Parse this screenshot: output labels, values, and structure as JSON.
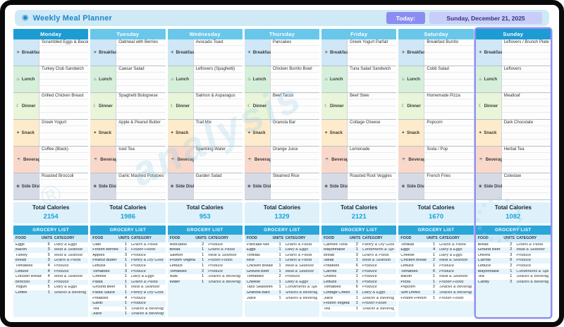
{
  "app": {
    "title": "Weekly Meal Planner",
    "today_label": "Today:",
    "today_date": "Sunday, December 21, 2025"
  },
  "watermark": {
    "text": "analysis",
    "reg": "®"
  },
  "labels": {
    "total_calories": "Total Calories",
    "grocery_list": "GROCERY LIST",
    "food": "FOOD",
    "units": "UNITS",
    "category": "CATEGORY"
  },
  "colors": {
    "day_header_dark": "#1d9cd4",
    "day_header_light": "#69c7ea",
    "today_outline": "#8f8ff2",
    "grocery_header": "#2aa7d8",
    "calorie_value": "#17a2d8"
  },
  "meal_types": [
    {
      "key": "breakfast",
      "label": "Breakfast",
      "icon_name": "breakfast-icon",
      "glyph": "☀",
      "color": "#cfe7f6"
    },
    {
      "key": "lunch",
      "label": "Lunch",
      "icon_name": "lunch-icon",
      "glyph": "♨",
      "color": "#d5efda"
    },
    {
      "key": "dinner",
      "label": "Dinner",
      "icon_name": "dinner-icon",
      "glyph": "☾",
      "color": "#e9f5d8"
    },
    {
      "key": "snack",
      "label": "Snack",
      "icon_name": "snack-icon",
      "glyph": "✦",
      "color": "#fdebcb"
    },
    {
      "key": "beverage",
      "label": "Beverage",
      "icon_name": "beverage-icon",
      "glyph": "☕",
      "color": "#f9d8ca"
    },
    {
      "key": "side_dish",
      "label": "Side Dish",
      "icon_name": "side-dish-icon",
      "glyph": "❀",
      "color": "#d5dae5"
    }
  ],
  "days": [
    {
      "name": "Monday",
      "header": "dark",
      "today": false,
      "meals": {
        "breakfast": "Scrambled Eggs & Bacon",
        "lunch": "Turkey Club Sandwich",
        "dinner": "Grilled Chicken Breast",
        "snack": "Greek Yogurt",
        "beverage": "Coffee (Black)",
        "side_dish": "Roasted Broccoli"
      },
      "total_calories": "2154",
      "grocery": [
        [
          "Eggs",
          "6",
          "Dairy & Eggs"
        ],
        [
          "Bacon",
          "3",
          "Meat & Seafood"
        ],
        [
          "Turkey",
          "5",
          "Meat & Seafood"
        ],
        [
          "Bread",
          "3",
          "Grains & Pasta"
        ],
        [
          "Tomatoes",
          "4",
          "Produce"
        ],
        [
          "Lettuce",
          "4",
          "Produce"
        ],
        [
          "Chicken Breast",
          "4",
          "Meat & Seafood"
        ],
        [
          "Broccoli",
          "2",
          "Produce"
        ],
        [
          "Yogurt",
          "5",
          "Dairy & Eggs"
        ],
        [
          "Coffee",
          "1",
          "Snacks & Beverages"
        ]
      ]
    },
    {
      "name": "Tuesday",
      "header": "light",
      "today": false,
      "meals": {
        "breakfast": "Oatmeal with Berries",
        "lunch": "Caesar Salad",
        "dinner": "Spaghetti Bolognese",
        "snack": "Apple & Peanut Butter",
        "beverage": "Iced Tea",
        "side_dish": "Garlic Mashed Potatoes"
      },
      "total_calories": "1986",
      "grocery": [
        [
          "Oats",
          "1",
          "Grains & Pasta"
        ],
        [
          "Frozen Berries",
          "1",
          "Frozen Foods"
        ],
        [
          "Apples",
          "3",
          "Produce"
        ],
        [
          "Peanut Butter",
          "1",
          "Pantry & Dry Goods"
        ],
        [
          "Lettuce",
          "1",
          "Produce"
        ],
        [
          "Tomatoes",
          "3",
          "Produce"
        ],
        [
          "Cheese",
          "1",
          "Dairy & Eggs"
        ],
        [
          "Pasta",
          "1",
          "Grains & Pasta"
        ],
        [
          "Ground Beef",
          "1",
          "Meat & Seafood"
        ],
        [
          "Pasta Sauce",
          "1",
          "Pantry & Dry Goods"
        ],
        [
          "Potatoes",
          "4",
          "Produce"
        ],
        [
          "Garlic",
          "1",
          "Produce"
        ],
        [
          "Tea",
          "1",
          "Snacks & Beverages"
        ],
        [
          "Juice",
          "1",
          "Snacks & Beverages"
        ]
      ]
    },
    {
      "name": "Wednesday",
      "header": "light",
      "today": false,
      "meals": {
        "breakfast": "Avocado Toast",
        "lunch": "Leftovers (Spaghetti)",
        "dinner": "Salmon & Asparagus",
        "snack": "Trail Mix",
        "beverage": "Sparkling Water",
        "side_dish": "Garden Salad"
      },
      "total_calories": "953",
      "grocery": [
        [
          "Avocados",
          "2",
          "Produce"
        ],
        [
          "Bread",
          "1",
          "Grains & Pasta"
        ],
        [
          "Salmon",
          "1",
          "Meat & Seafood"
        ],
        [
          "Frozen Vegetable",
          "1",
          "Frozen Foods"
        ],
        [
          "Lettuce",
          "1",
          "Produce"
        ],
        [
          "Tomatoes",
          "2",
          "Produce"
        ],
        [
          "Nuts",
          "1",
          "Snacks & Beverages"
        ],
        [
          "Water",
          "1",
          "Snacks & Beverages"
        ]
      ]
    },
    {
      "name": "Thursday",
      "header": "light",
      "today": false,
      "meals": {
        "breakfast": "Pancakes",
        "lunch": "Chicken Burrito Bowl",
        "dinner": "Beef Tacos",
        "snack": "Granola Bar",
        "beverage": "Orange Juice",
        "side_dish": "Steamed Rice"
      },
      "total_calories": "1329",
      "grocery": [
        [
          "Pancake Mix",
          "1",
          "Grains & Pasta"
        ],
        [
          "Eggs",
          "1",
          "Dairy & Eggs"
        ],
        [
          "Tortillas",
          "1",
          "Grains & Pasta"
        ],
        [
          "Rice",
          "1",
          "Grains & Pasta"
        ],
        [
          "Chicken Breast",
          "1",
          "Meat & Seafood"
        ],
        [
          "Ground Beef",
          "1",
          "Meat & Seafood"
        ],
        [
          "Tomatoes",
          "2",
          "Produce"
        ],
        [
          "Cheese",
          "1",
          "Dairy & Eggs"
        ],
        [
          "Taco Seasoning",
          "1",
          "Condiments & Spices"
        ],
        [
          "Granola Bars",
          "1",
          "Snacks & Beverages"
        ],
        [
          "Juice",
          "1",
          "Snacks & Beverages"
        ]
      ]
    },
    {
      "name": "Friday",
      "header": "light",
      "today": false,
      "meals": {
        "breakfast": "Greek Yogurt Parfait",
        "lunch": "Tuna Salad Sandwich",
        "dinner": "Beef Stew",
        "snack": "Cottage Cheese",
        "beverage": "Lemonade",
        "side_dish": "Roasted Root Veggies"
      },
      "total_calories": "2121",
      "grocery": [
        [
          "Canned Tuna",
          "2",
          "Pantry & Dry Goods"
        ],
        [
          "Mayonnaise",
          "1",
          "Condiments & Spices"
        ],
        [
          "Bread",
          "3",
          "Grains & Pasta"
        ],
        [
          "Steak",
          "1",
          "Meat & Seafood"
        ],
        [
          "Potatoes",
          "6",
          "Produce"
        ],
        [
          "Carrots",
          "2",
          "Produce"
        ],
        [
          "Onions",
          "1",
          "Produce"
        ],
        [
          "Lettuce",
          "1",
          "Produce"
        ],
        [
          "Tomatoes",
          "6",
          "Produce"
        ],
        [
          "Cottage Cheese",
          "1",
          "Dairy & Eggs"
        ],
        [
          "Juice",
          "1",
          "Snacks & Beverages"
        ],
        [
          "Frozen Vegetable",
          "1",
          "Frozen Foods"
        ],
        [
          "Tea",
          "1",
          "Snacks & Beverages"
        ]
      ]
    },
    {
      "name": "Saturday",
      "header": "light",
      "today": false,
      "meals": {
        "breakfast": "Breakfast Burrito",
        "lunch": "Cobb Salad",
        "dinner": "Homemade Pizza",
        "snack": "Popcorn",
        "beverage": "Soda / Pop",
        "side_dish": "French Fries"
      },
      "total_calories": "1670",
      "grocery": [
        [
          "Tortillas",
          "1",
          "Grains & Pasta"
        ],
        [
          "Eggs",
          "4",
          "Dairy & Eggs"
        ],
        [
          "Cheese",
          "1",
          "Dairy & Eggs"
        ],
        [
          "Chicken Breast",
          "2",
          "Meat & Seafood"
        ],
        [
          "Lettuce",
          "1",
          "Produce"
        ],
        [
          "Tomatoes",
          "6",
          "Produce"
        ],
        [
          "Bacon",
          "1",
          "Meat & Seafood"
        ],
        [
          "Pizza",
          "1",
          "Frozen Foods"
        ],
        [
          "Popcorn",
          "2",
          "Snacks & Beverages"
        ],
        [
          "Soft Drinks",
          "1",
          "Snacks & Beverages"
        ],
        [
          "Frozen French Fri",
          "1",
          "Frozen Foods"
        ]
      ]
    },
    {
      "name": "Sunday",
      "header": "dark",
      "today": true,
      "meals": {
        "breakfast": "Leftovers / Brunch Plate",
        "lunch": "Leftovers",
        "dinner": "Meatloaf",
        "snack": "Dark Chocolate",
        "beverage": "Herbal Tea",
        "side_dish": "Coleslaw"
      },
      "total_calories": "1082",
      "grocery": [
        [
          "Bread",
          "2",
          "Grains & Pasta"
        ],
        [
          "Ground Beef",
          "2",
          "Meat & Seafood"
        ],
        [
          "Onions",
          "3",
          "Produce"
        ],
        [
          "Carrots",
          "6",
          "Produce"
        ],
        [
          "Lettuce",
          "2",
          "Produce"
        ],
        [
          "Mayonnaise",
          "1",
          "Condiments & Spices"
        ],
        [
          "Tea",
          "1",
          "Snacks & Beverages"
        ],
        [
          "Candy",
          "2",
          "Snacks & Beverages"
        ]
      ]
    }
  ]
}
